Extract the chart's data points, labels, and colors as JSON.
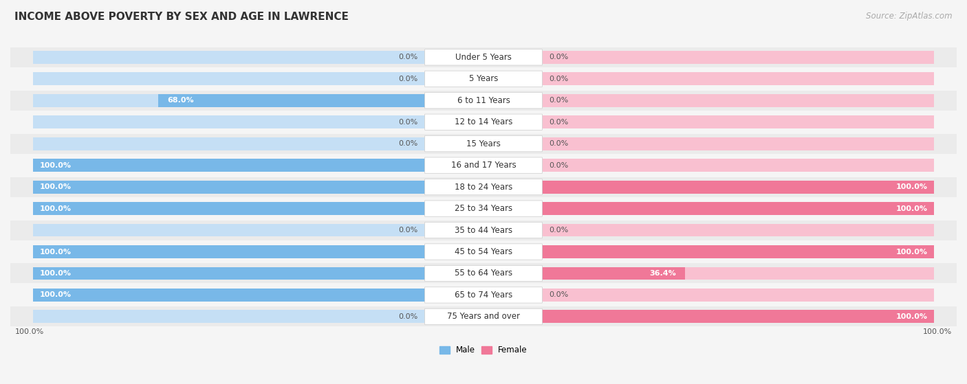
{
  "title": "INCOME ABOVE POVERTY BY SEX AND AGE IN LAWRENCE",
  "source": "Source: ZipAtlas.com",
  "categories": [
    "Under 5 Years",
    "5 Years",
    "6 to 11 Years",
    "12 to 14 Years",
    "15 Years",
    "16 and 17 Years",
    "18 to 24 Years",
    "25 to 34 Years",
    "35 to 44 Years",
    "45 to 54 Years",
    "55 to 64 Years",
    "65 to 74 Years",
    "75 Years and over"
  ],
  "male": [
    0.0,
    0.0,
    68.0,
    0.0,
    0.0,
    100.0,
    100.0,
    100.0,
    0.0,
    100.0,
    100.0,
    100.0,
    0.0
  ],
  "female": [
    0.0,
    0.0,
    0.0,
    0.0,
    0.0,
    0.0,
    100.0,
    100.0,
    0.0,
    100.0,
    36.4,
    0.0,
    100.0
  ],
  "male_color": "#78b8e8",
  "female_color": "#f07898",
  "male_color_light": "#c5dff5",
  "female_color_light": "#f9c0d0",
  "male_label": "Male",
  "female_label": "Female",
  "bg_color": "#f5f5f5",
  "row_color_odd": "#ebebeb",
  "row_color_even": "#f5f5f5",
  "label_box_color": "#ffffff",
  "axis_label_left": "100.0%",
  "axis_label_right": "100.0%",
  "title_fontsize": 11,
  "source_fontsize": 8.5,
  "label_fontsize": 8.0,
  "cat_fontsize": 8.5
}
